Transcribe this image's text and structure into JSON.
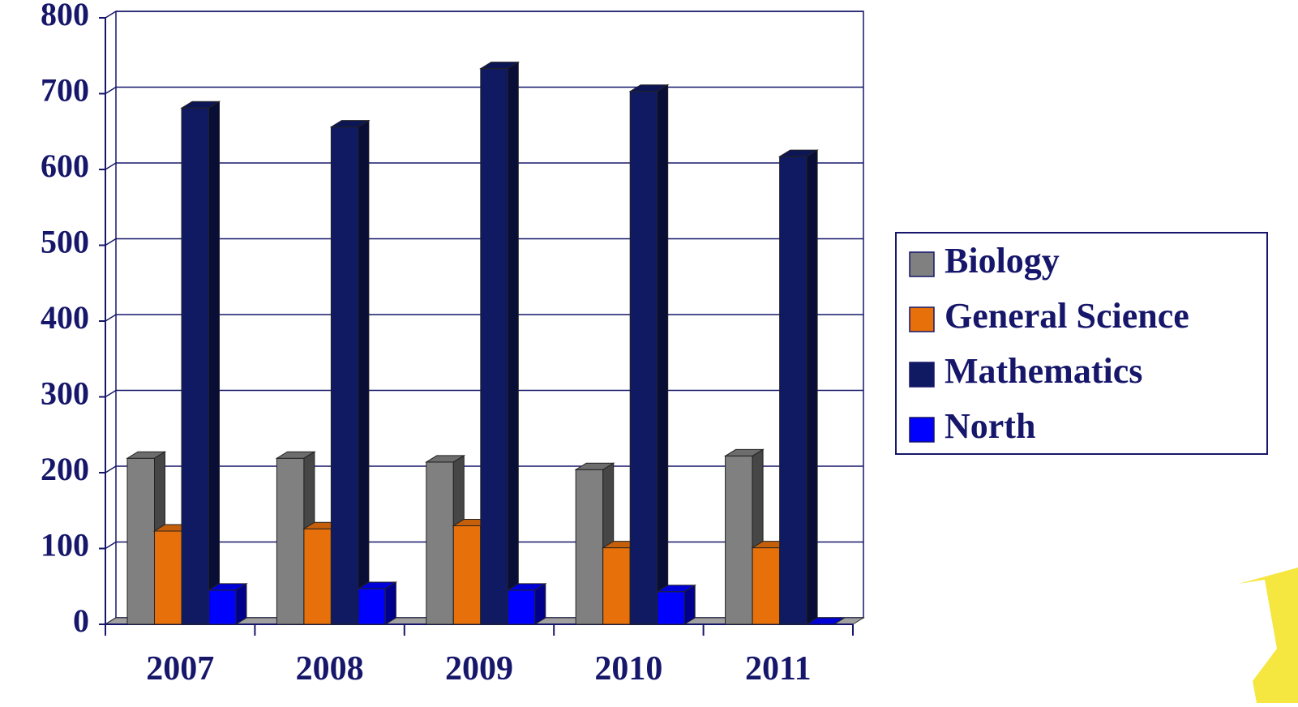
{
  "chart_data": {
    "type": "bar3d",
    "categories": [
      "2007",
      "2008",
      "2009",
      "2010",
      "2011"
    ],
    "series": [
      {
        "name": "Biology",
        "color": "#808080",
        "values": [
          219,
          219,
          214,
          204,
          222
        ]
      },
      {
        "name": "General Science",
        "color": "#e8700a",
        "values": [
          123,
          126,
          130,
          101,
          101
        ]
      },
      {
        "name": "Mathematics",
        "color": "#0f1a63",
        "values": [
          681,
          656,
          733,
          703,
          617
        ]
      },
      {
        "name": "North",
        "color": "#0000ff",
        "values": [
          45,
          47,
          45,
          43,
          0
        ]
      }
    ],
    "ylim": [
      0,
      800
    ],
    "yticks": [
      0,
      100,
      200,
      300,
      400,
      500,
      600,
      700,
      800
    ],
    "grid": true
  }
}
